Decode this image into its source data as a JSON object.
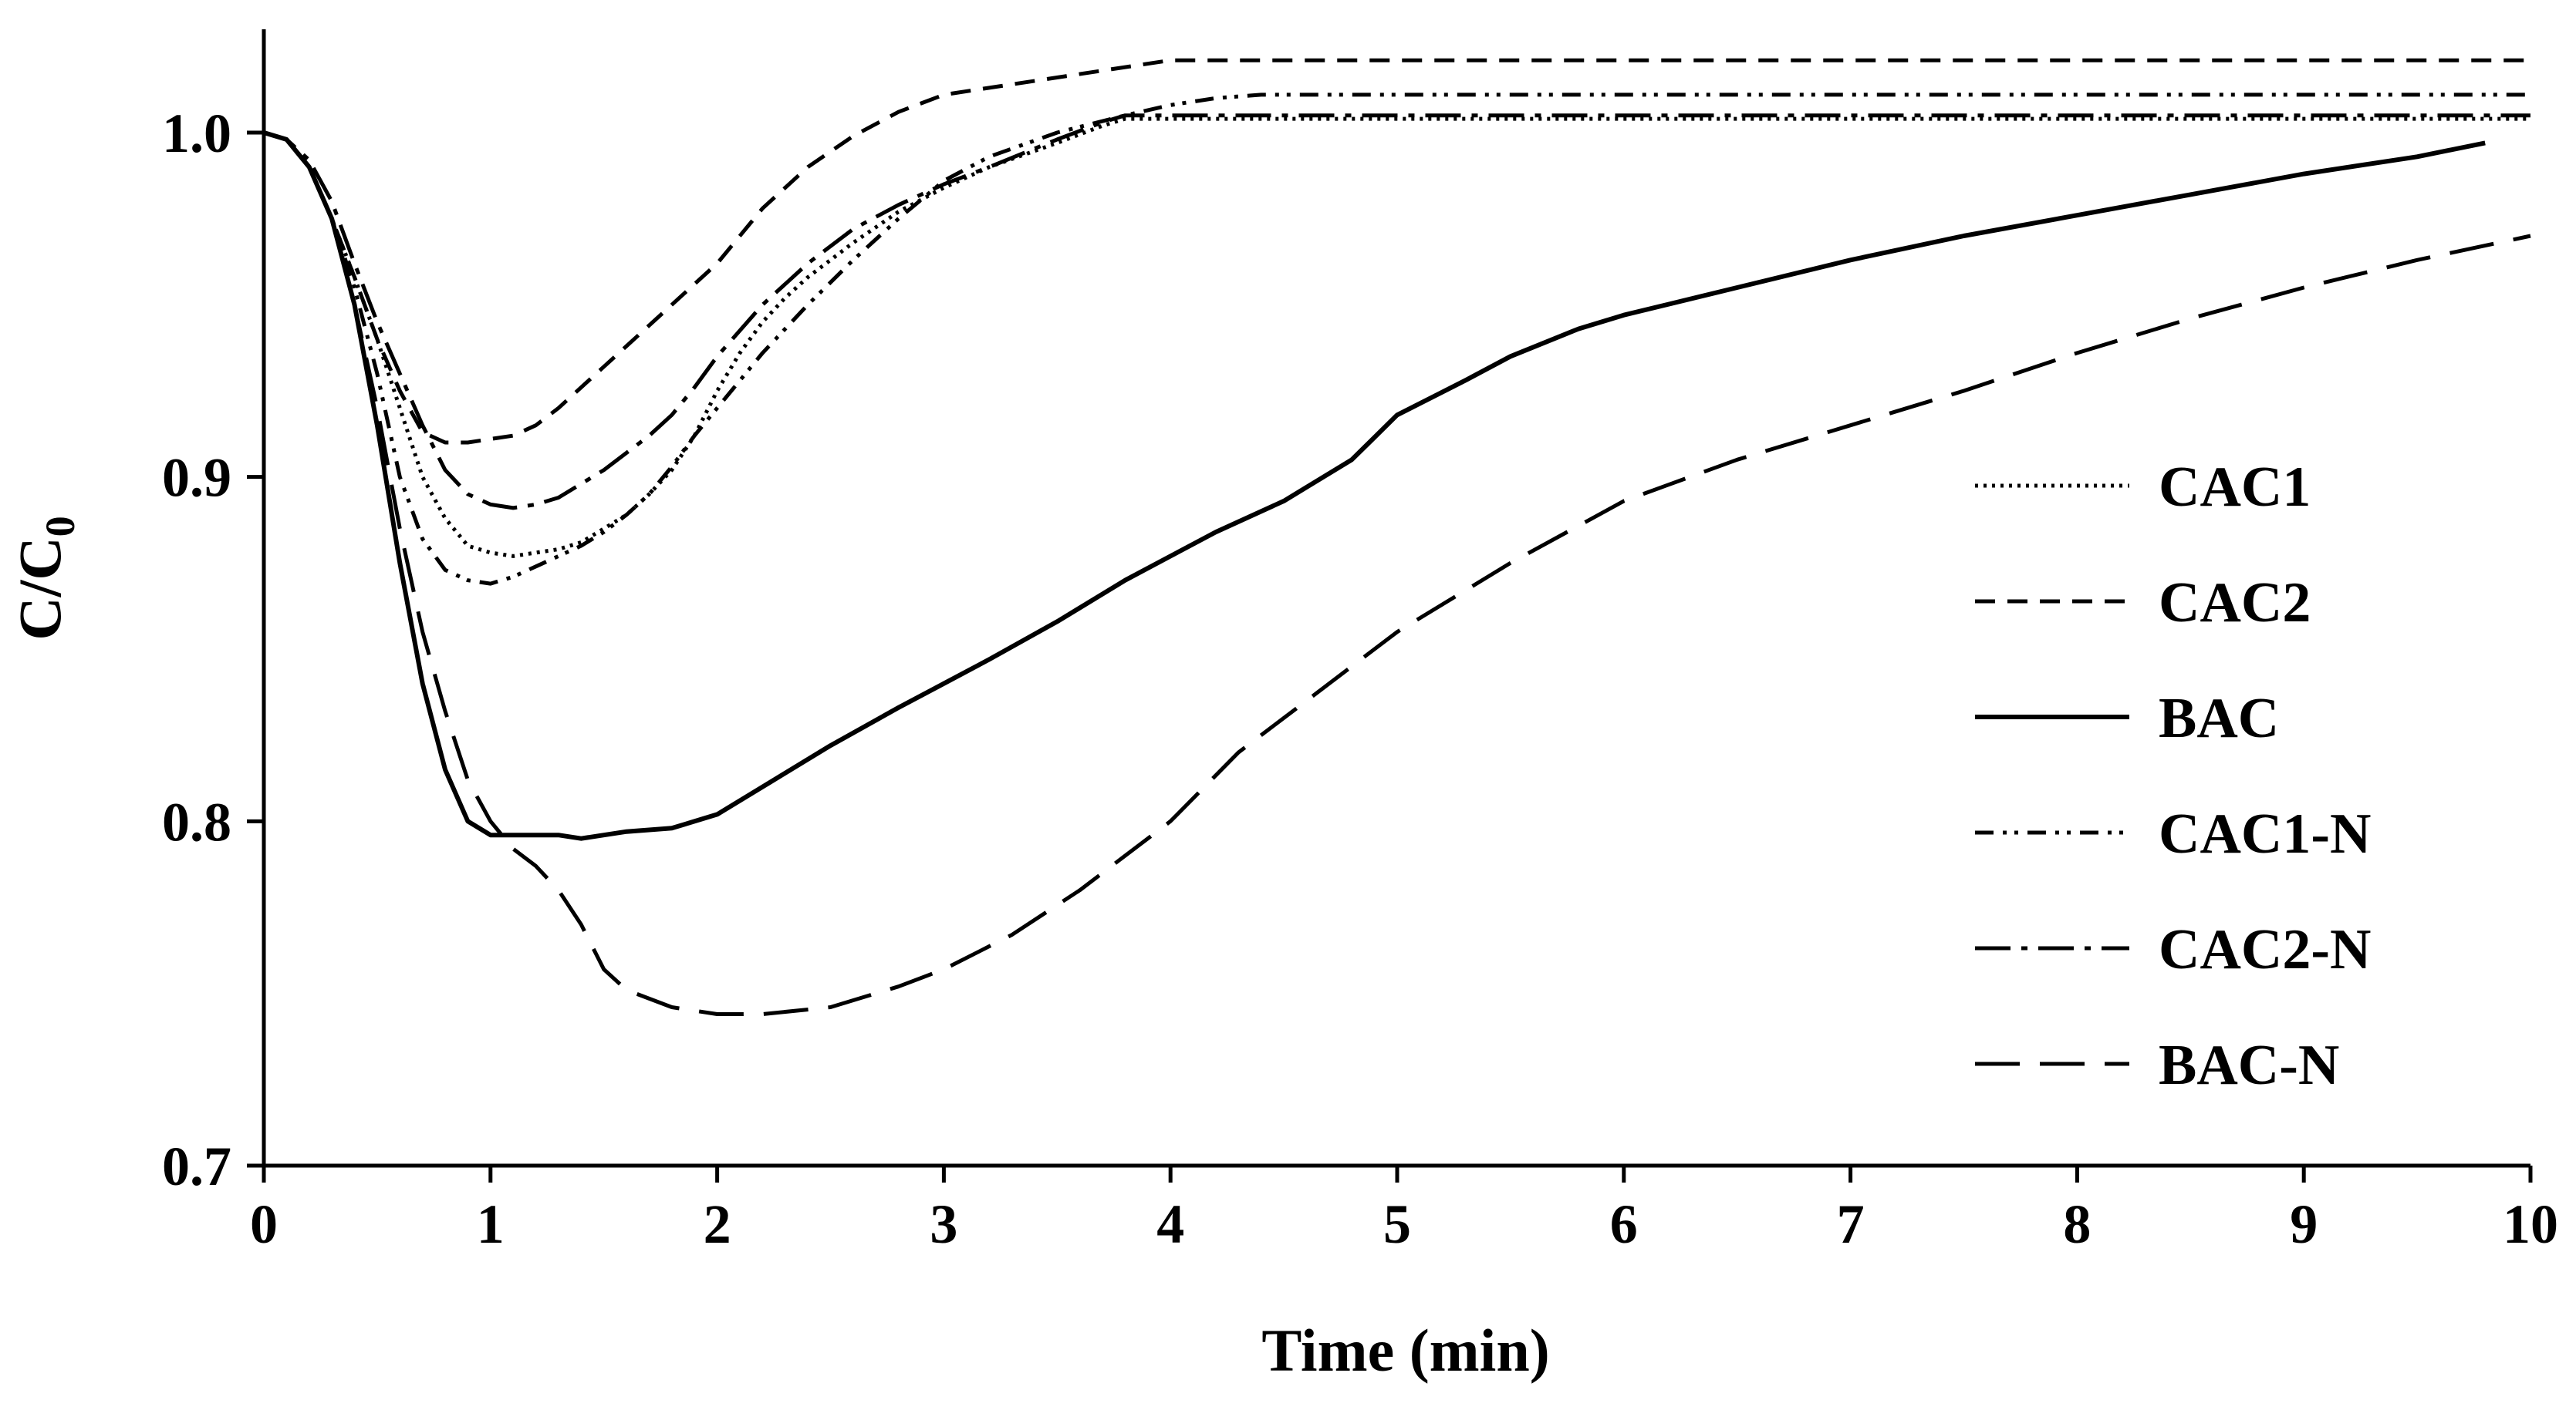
{
  "chart_data": {
    "type": "line",
    "title": "",
    "xlabel": "Time (min)",
    "ylabel": "C/C",
    "ylabel_subscript": "0",
    "xlim": [
      0,
      10
    ],
    "ylim": [
      0.7,
      1.03
    ],
    "x_ticks": [
      "0",
      "1",
      "2",
      "3",
      "4",
      "5",
      "6",
      "7",
      "8",
      "9",
      "10"
    ],
    "y_ticks": [
      "0.7",
      "0.8",
      "0.9",
      "1.0"
    ],
    "grid": false,
    "legend_position": "right",
    "series": [
      {
        "name": "CAC1",
        "dash": "dotted",
        "x": [
          0,
          0.1,
          0.2,
          0.3,
          0.4,
          0.5,
          0.6,
          0.7,
          0.8,
          0.9,
          1.0,
          1.1,
          1.2,
          1.3,
          1.4,
          1.5,
          1.6,
          1.7,
          1.8,
          1.9,
          2.0,
          2.1,
          2.2,
          2.3,
          2.4,
          2.5,
          2.6,
          2.8,
          3.0,
          3.2,
          3.5,
          3.7,
          3.8,
          4.0,
          6.0,
          8.0,
          10.0
        ],
        "values": [
          1.0,
          0.998,
          0.99,
          0.975,
          0.958,
          0.94,
          0.92,
          0.9,
          0.888,
          0.88,
          0.878,
          0.877,
          0.878,
          0.879,
          0.881,
          0.885,
          0.889,
          0.895,
          0.902,
          0.912,
          0.925,
          0.936,
          0.945,
          0.952,
          0.958,
          0.963,
          0.968,
          0.977,
          0.984,
          0.99,
          0.997,
          1.002,
          1.004,
          1.004,
          1.004,
          1.004,
          1.004
        ]
      },
      {
        "name": "CAC2",
        "dash": "short-dash",
        "x": [
          0,
          0.1,
          0.2,
          0.3,
          0.4,
          0.5,
          0.6,
          0.7,
          0.8,
          0.9,
          1.0,
          1.1,
          1.2,
          1.3,
          1.4,
          1.5,
          1.6,
          1.8,
          2.0,
          2.2,
          2.4,
          2.6,
          2.8,
          3.0,
          3.2,
          3.5,
          3.8,
          4.0,
          4.2,
          5.0,
          7.0,
          10.0
        ],
        "values": [
          1.0,
          0.998,
          0.99,
          0.975,
          0.958,
          0.94,
          0.925,
          0.913,
          0.91,
          0.91,
          0.911,
          0.912,
          0.915,
          0.92,
          0.926,
          0.932,
          0.938,
          0.95,
          0.962,
          0.978,
          0.99,
          0.999,
          1.006,
          1.011,
          1.013,
          1.016,
          1.019,
          1.021,
          1.021,
          1.021,
          1.021,
          1.021
        ]
      },
      {
        "name": "BAC",
        "dash": "solid",
        "x": [
          0,
          0.1,
          0.2,
          0.3,
          0.4,
          0.5,
          0.6,
          0.7,
          0.8,
          0.9,
          1.0,
          1.1,
          1.2,
          1.3,
          1.4,
          1.5,
          1.6,
          1.8,
          2.0,
          2.2,
          2.5,
          2.8,
          3.0,
          3.2,
          3.5,
          3.8,
          4.0,
          4.2,
          4.5,
          4.8,
          5.0,
          5.3,
          5.5,
          5.8,
          6.0,
          6.5,
          7.0,
          7.5,
          8.0,
          8.5,
          9.0,
          9.5,
          9.8
        ],
        "values": [
          1.0,
          0.998,
          0.99,
          0.975,
          0.95,
          0.915,
          0.875,
          0.84,
          0.815,
          0.8,
          0.796,
          0.796,
          0.796,
          0.796,
          0.795,
          0.796,
          0.797,
          0.798,
          0.802,
          0.81,
          0.822,
          0.833,
          0.84,
          0.847,
          0.858,
          0.87,
          0.877,
          0.884,
          0.893,
          0.905,
          0.918,
          0.928,
          0.935,
          0.943,
          0.947,
          0.955,
          0.963,
          0.97,
          0.976,
          0.982,
          0.988,
          0.993,
          0.997
        ]
      },
      {
        "name": "CAC1-N",
        "dash": "dash-dot-dot",
        "x": [
          0,
          0.1,
          0.2,
          0.3,
          0.4,
          0.5,
          0.6,
          0.7,
          0.8,
          0.9,
          1.0,
          1.1,
          1.2,
          1.3,
          1.4,
          1.5,
          1.6,
          1.7,
          1.8,
          1.9,
          2.0,
          2.2,
          2.4,
          2.6,
          2.8,
          3.0,
          3.2,
          3.5,
          3.8,
          4.0,
          4.2,
          4.4,
          6.0,
          8.0,
          10.0
        ],
        "values": [
          1.0,
          0.998,
          0.99,
          0.975,
          0.955,
          0.93,
          0.9,
          0.882,
          0.873,
          0.87,
          0.869,
          0.871,
          0.874,
          0.877,
          0.88,
          0.884,
          0.889,
          0.895,
          0.903,
          0.912,
          0.92,
          0.936,
          0.95,
          0.963,
          0.975,
          0.986,
          0.993,
          1.0,
          1.005,
          1.008,
          1.01,
          1.011,
          1.011,
          1.011,
          1.011
        ]
      },
      {
        "name": "CAC2-N",
        "dash": "long-dash-dot",
        "x": [
          0,
          0.1,
          0.2,
          0.3,
          0.4,
          0.5,
          0.6,
          0.7,
          0.8,
          0.9,
          1.0,
          1.1,
          1.2,
          1.3,
          1.4,
          1.5,
          1.6,
          1.7,
          1.8,
          1.9,
          2.0,
          2.2,
          2.4,
          2.6,
          2.8,
          3.0,
          3.2,
          3.5,
          3.7,
          3.8,
          4.0,
          6.0,
          8.0,
          10.0
        ],
        "values": [
          1.0,
          0.998,
          0.992,
          0.98,
          0.962,
          0.945,
          0.93,
          0.915,
          0.902,
          0.895,
          0.892,
          0.891,
          0.892,
          0.894,
          0.898,
          0.902,
          0.907,
          0.912,
          0.918,
          0.926,
          0.935,
          0.95,
          0.962,
          0.972,
          0.979,
          0.985,
          0.99,
          0.998,
          1.003,
          1.005,
          1.005,
          1.005,
          1.005,
          1.005
        ]
      },
      {
        "name": "BAC-N",
        "dash": "long-dash",
        "x": [
          0,
          0.1,
          0.2,
          0.3,
          0.4,
          0.5,
          0.6,
          0.7,
          0.8,
          0.9,
          1.0,
          1.1,
          1.2,
          1.3,
          1.4,
          1.5,
          1.6,
          1.8,
          2.0,
          2.2,
          2.5,
          2.8,
          3.0,
          3.3,
          3.6,
          3.8,
          4.0,
          4.3,
          4.6,
          5.0,
          5.5,
          6.0,
          6.5,
          7.0,
          7.5,
          8.0,
          8.5,
          9.0,
          9.5,
          10.0
        ],
        "values": [
          1.0,
          0.998,
          0.99,
          0.975,
          0.95,
          0.92,
          0.885,
          0.855,
          0.832,
          0.812,
          0.8,
          0.792,
          0.787,
          0.78,
          0.77,
          0.757,
          0.751,
          0.746,
          0.744,
          0.744,
          0.746,
          0.752,
          0.757,
          0.767,
          0.78,
          0.79,
          0.8,
          0.82,
          0.835,
          0.855,
          0.875,
          0.893,
          0.905,
          0.915,
          0.925,
          0.936,
          0.946,
          0.955,
          0.963,
          0.97
        ]
      }
    ]
  }
}
